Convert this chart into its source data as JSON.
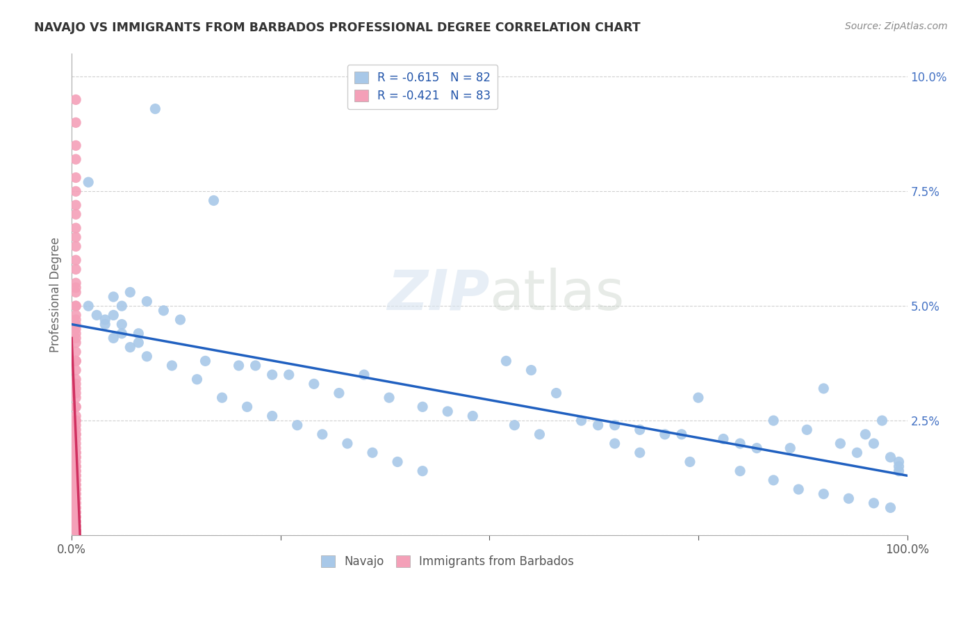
{
  "title": "NAVAJO VS IMMIGRANTS FROM BARBADOS PROFESSIONAL DEGREE CORRELATION CHART",
  "source": "Source: ZipAtlas.com",
  "ylabel": "Professional Degree",
  "background_color": "#ffffff",
  "navajo_color": "#a8c8e8",
  "barbados_color": "#f4a0b8",
  "navajo_line_color": "#2060c0",
  "barbados_line_color": "#d03060",
  "legend_navajo_label": "R = -0.615   N = 82",
  "legend_barbados_label": "R = -0.421   N = 83",
  "legend_bottom_navajo": "Navajo",
  "legend_bottom_barbados": "Immigrants from Barbados",
  "xlim": [
    0.0,
    1.0
  ],
  "ylim": [
    0.0,
    0.105
  ],
  "navajo_x": [
    0.1,
    0.02,
    0.17,
    0.05,
    0.06,
    0.05,
    0.07,
    0.09,
    0.11,
    0.13,
    0.16,
    0.2,
    0.22,
    0.24,
    0.26,
    0.29,
    0.32,
    0.35,
    0.38,
    0.42,
    0.45,
    0.48,
    0.52,
    0.55,
    0.58,
    0.61,
    0.63,
    0.65,
    0.68,
    0.71,
    0.73,
    0.75,
    0.78,
    0.8,
    0.82,
    0.84,
    0.86,
    0.88,
    0.9,
    0.92,
    0.94,
    0.95,
    0.96,
    0.97,
    0.98,
    0.99,
    0.99,
    0.99,
    0.04,
    0.06,
    0.08,
    0.05,
    0.07,
    0.09,
    0.12,
    0.15,
    0.18,
    0.21,
    0.24,
    0.27,
    0.3,
    0.33,
    0.36,
    0.39,
    0.42,
    0.53,
    0.56,
    0.65,
    0.68,
    0.74,
    0.8,
    0.84,
    0.87,
    0.9,
    0.93,
    0.96,
    0.98,
    0.02,
    0.03,
    0.04,
    0.06,
    0.08
  ],
  "navajo_y": [
    0.093,
    0.077,
    0.073,
    0.052,
    0.05,
    0.048,
    0.053,
    0.051,
    0.049,
    0.047,
    0.038,
    0.037,
    0.037,
    0.035,
    0.035,
    0.033,
    0.031,
    0.035,
    0.03,
    0.028,
    0.027,
    0.026,
    0.038,
    0.036,
    0.031,
    0.025,
    0.024,
    0.024,
    0.023,
    0.022,
    0.022,
    0.03,
    0.021,
    0.02,
    0.019,
    0.025,
    0.019,
    0.023,
    0.032,
    0.02,
    0.018,
    0.022,
    0.02,
    0.025,
    0.017,
    0.016,
    0.015,
    0.014,
    0.047,
    0.046,
    0.044,
    0.043,
    0.041,
    0.039,
    0.037,
    0.034,
    0.03,
    0.028,
    0.026,
    0.024,
    0.022,
    0.02,
    0.018,
    0.016,
    0.014,
    0.024,
    0.022,
    0.02,
    0.018,
    0.016,
    0.014,
    0.012,
    0.01,
    0.009,
    0.008,
    0.007,
    0.006,
    0.05,
    0.048,
    0.046,
    0.044,
    0.042
  ],
  "barbados_x": [
    0.005,
    0.005,
    0.005,
    0.005,
    0.005,
    0.005,
    0.005,
    0.005,
    0.005,
    0.005,
    0.005,
    0.005,
    0.005,
    0.005,
    0.005,
    0.005,
    0.005,
    0.005,
    0.005,
    0.005,
    0.005,
    0.005,
    0.005,
    0.005,
    0.005,
    0.005,
    0.005,
    0.005,
    0.005,
    0.005,
    0.005,
    0.005,
    0.005,
    0.005,
    0.005,
    0.005,
    0.005,
    0.005,
    0.005,
    0.005,
    0.005,
    0.005,
    0.005,
    0.005,
    0.005,
    0.005,
    0.005,
    0.005,
    0.005,
    0.005,
    0.005,
    0.005,
    0.005,
    0.005,
    0.005,
    0.005,
    0.005,
    0.005,
    0.005,
    0.005,
    0.005,
    0.005,
    0.005,
    0.005,
    0.005,
    0.005,
    0.005,
    0.005,
    0.005,
    0.005,
    0.005,
    0.005,
    0.005,
    0.005,
    0.005,
    0.005,
    0.005,
    0.005,
    0.005,
    0.005,
    0.005,
    0.005,
    0.005
  ],
  "barbados_y": [
    0.095,
    0.09,
    0.085,
    0.082,
    0.078,
    0.075,
    0.072,
    0.07,
    0.067,
    0.065,
    0.063,
    0.06,
    0.058,
    0.055,
    0.053,
    0.05,
    0.048,
    0.046,
    0.044,
    0.042,
    0.04,
    0.038,
    0.036,
    0.034,
    0.032,
    0.03,
    0.028,
    0.026,
    0.025,
    0.024,
    0.023,
    0.022,
    0.021,
    0.02,
    0.019,
    0.018,
    0.018,
    0.017,
    0.016,
    0.015,
    0.015,
    0.014,
    0.014,
    0.013,
    0.012,
    0.012,
    0.011,
    0.011,
    0.01,
    0.01,
    0.009,
    0.009,
    0.008,
    0.008,
    0.007,
    0.007,
    0.006,
    0.006,
    0.005,
    0.005,
    0.004,
    0.004,
    0.003,
    0.003,
    0.002,
    0.002,
    0.001,
    0.001,
    0.047,
    0.043,
    0.038,
    0.033,
    0.028,
    0.022,
    0.017,
    0.013,
    0.01,
    0.054,
    0.05,
    0.045,
    0.038,
    0.031,
    0.025
  ],
  "navajo_line_x": [
    0.0,
    1.0
  ],
  "navajo_line_y": [
    0.046,
    0.013
  ],
  "barbados_line_x": [
    0.005,
    0.005
  ],
  "barbados_line_y": [
    0.043,
    0.001
  ]
}
